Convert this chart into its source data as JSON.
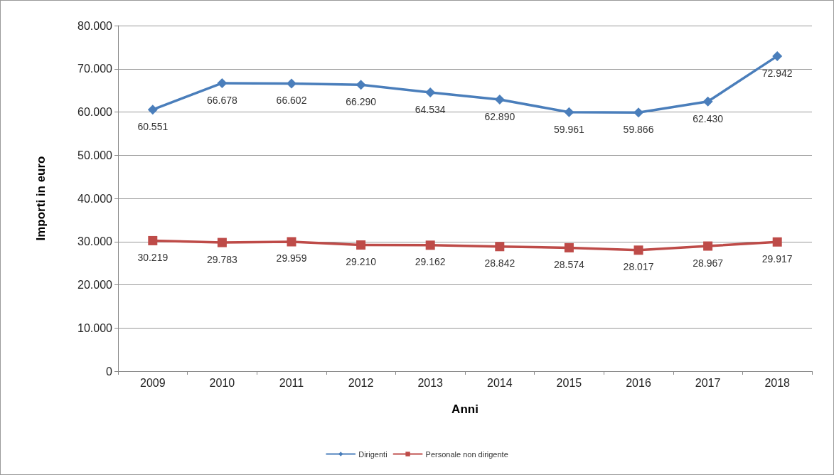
{
  "chart_data": {
    "type": "line",
    "xlabel": "Anni",
    "ylabel": "Importi in euro",
    "categories": [
      "2009",
      "2010",
      "2011",
      "2012",
      "2013",
      "2014",
      "2015",
      "2016",
      "2017",
      "2018"
    ],
    "series": [
      {
        "name": "Dirigenti",
        "color": "#4a7ebb",
        "marker": "diamond",
        "values": [
          60551,
          66678,
          66602,
          66290,
          64534,
          62890,
          59961,
          59866,
          62430,
          72942
        ],
        "value_labels": [
          "60.551",
          "66.678",
          "66.602",
          "66.290",
          "64.534",
          "62.890",
          "59.961",
          "59.866",
          "62.430",
          "72.942"
        ]
      },
      {
        "name": "Personale non dirigente",
        "color": "#be4b48",
        "marker": "square",
        "values": [
          30219,
          29783,
          29959,
          29210,
          29162,
          28842,
          28574,
          28017,
          28967,
          29917
        ],
        "value_labels": [
          "30.219",
          "29.783",
          "29.959",
          "29.210",
          "29.162",
          "28.842",
          "28.574",
          "28.017",
          "28.967",
          "29.917"
        ]
      }
    ],
    "ylim": [
      0,
      80000
    ],
    "yticks": [
      {
        "value": 0,
        "label": "0"
      },
      {
        "value": 10000,
        "label": "10.000"
      },
      {
        "value": 20000,
        "label": "20.000"
      },
      {
        "value": 30000,
        "label": "30.000"
      },
      {
        "value": 40000,
        "label": "40.000"
      },
      {
        "value": 50000,
        "label": "50.000"
      },
      {
        "value": 60000,
        "label": "60.000"
      },
      {
        "value": 70000,
        "label": "70.000"
      },
      {
        "value": 80000,
        "label": "80.000"
      }
    ],
    "grid": "y",
    "legend": "bottom",
    "line_style": "solid"
  }
}
